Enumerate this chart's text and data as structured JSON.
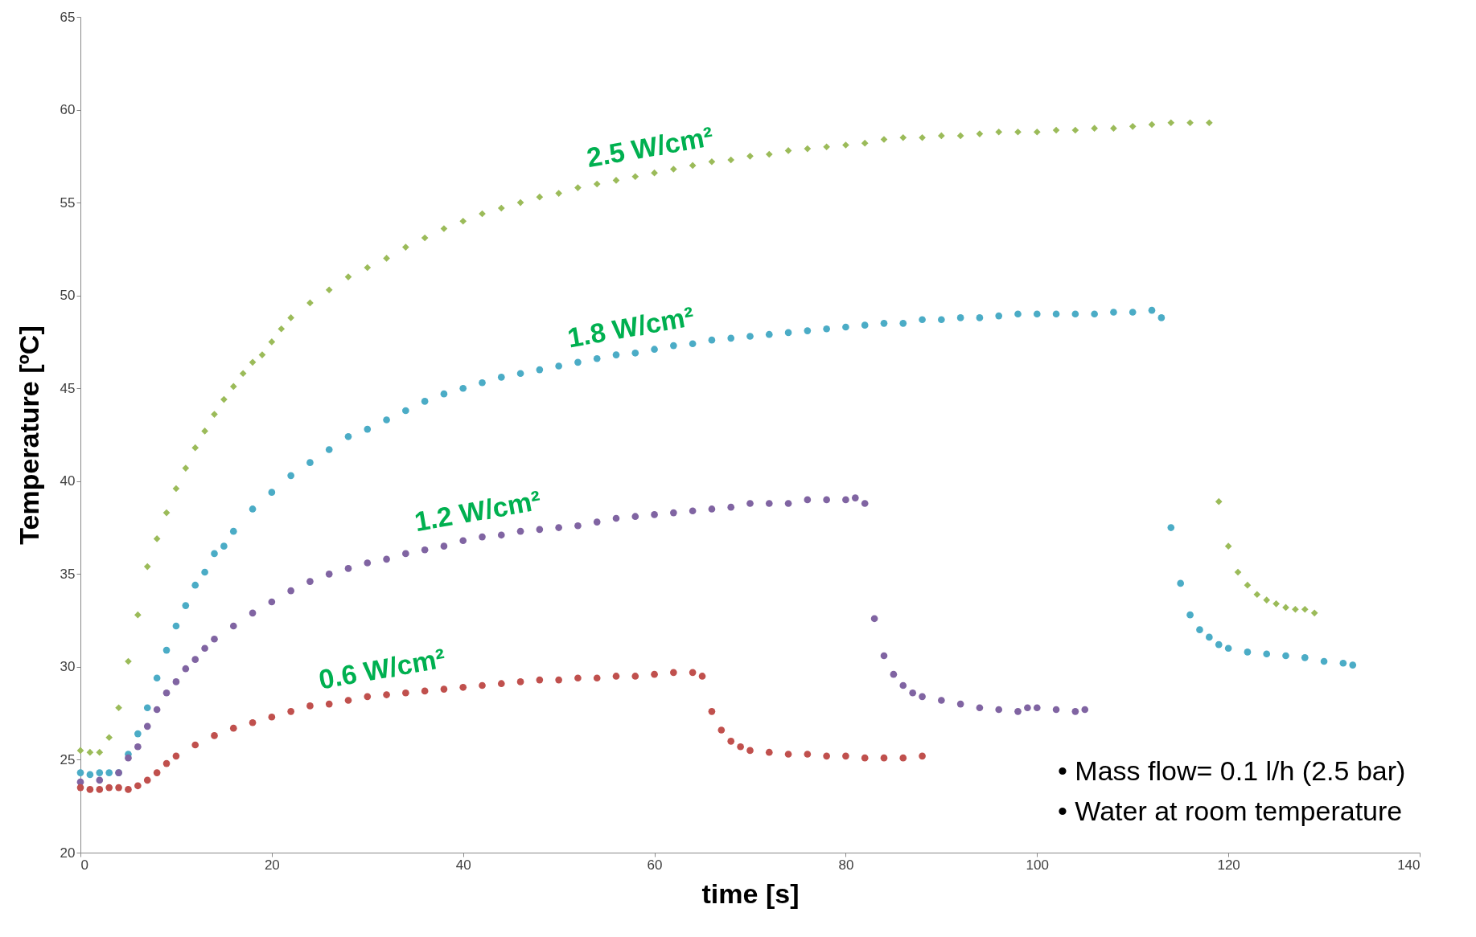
{
  "chart_data": {
    "type": "scatter",
    "xlabel": "time [s]",
    "ylabel": "Temperature [ºC]",
    "xlim": [
      0,
      140
    ],
    "xticks": [
      0,
      20,
      40,
      60,
      80,
      100,
      120,
      140
    ],
    "ylim": [
      20,
      65
    ],
    "yticks": [
      20,
      25,
      30,
      35,
      40,
      45,
      50,
      55,
      60,
      65
    ],
    "grid": false,
    "marker": "circle",
    "series": [
      {
        "name": "2.5 W/cm²",
        "color": "#9bbb59",
        "marker": "diamond",
        "x": [
          0,
          1,
          2,
          3,
          4,
          5,
          6,
          7,
          8,
          9,
          10,
          11,
          12,
          13,
          14,
          15,
          16,
          17,
          18,
          19,
          20,
          21,
          22,
          24,
          26,
          28,
          30,
          32,
          34,
          36,
          38,
          40,
          42,
          44,
          46,
          48,
          50,
          52,
          54,
          56,
          58,
          60,
          62,
          64,
          66,
          68,
          70,
          72,
          74,
          76,
          78,
          80,
          82,
          84,
          86,
          88,
          90,
          92,
          94,
          96,
          98,
          100,
          102,
          104,
          106,
          108,
          110,
          112,
          114,
          116,
          118,
          119,
          120,
          121,
          122,
          123,
          124,
          125,
          126,
          127,
          128,
          129
        ],
        "values": [
          25.5,
          25.4,
          25.4,
          26.2,
          27.8,
          30.3,
          32.8,
          35.4,
          36.9,
          38.3,
          39.6,
          40.7,
          41.8,
          42.7,
          43.6,
          44.4,
          45.1,
          45.8,
          46.4,
          46.8,
          47.5,
          48.2,
          48.8,
          49.6,
          50.3,
          51.0,
          51.5,
          52.0,
          52.6,
          53.1,
          53.6,
          54.0,
          54.4,
          54.7,
          55.0,
          55.3,
          55.5,
          55.8,
          56.0,
          56.2,
          56.4,
          56.6,
          56.8,
          57.0,
          57.2,
          57.3,
          57.5,
          57.6,
          57.8,
          57.9,
          58.0,
          58.1,
          58.2,
          58.4,
          58.5,
          58.5,
          58.6,
          58.6,
          58.7,
          58.8,
          58.8,
          58.8,
          58.9,
          58.9,
          59.0,
          59.0,
          59.1,
          59.2,
          59.3,
          59.3,
          59.3,
          38.9,
          36.5,
          35.1,
          34.4,
          33.9,
          33.6,
          33.4,
          33.2,
          33.1,
          33.1,
          32.9
        ]
      },
      {
        "name": "1.8 W/cm²",
        "color": "#4bacc6",
        "x": [
          0,
          1,
          2,
          3,
          4,
          5,
          6,
          7,
          8,
          9,
          10,
          11,
          12,
          13,
          14,
          15,
          16,
          18,
          20,
          22,
          24,
          26,
          28,
          30,
          32,
          34,
          36,
          38,
          40,
          42,
          44,
          46,
          48,
          50,
          52,
          54,
          56,
          58,
          60,
          62,
          64,
          66,
          68,
          70,
          72,
          74,
          76,
          78,
          80,
          82,
          84,
          86,
          88,
          90,
          92,
          94,
          96,
          98,
          100,
          102,
          104,
          106,
          108,
          110,
          112,
          113,
          114,
          115,
          116,
          117,
          118,
          119,
          120,
          122,
          124,
          126,
          128,
          130,
          132,
          133
        ],
        "values": [
          24.3,
          24.2,
          24.3,
          24.3,
          24.3,
          25.3,
          26.4,
          27.8,
          29.4,
          30.9,
          32.2,
          33.3,
          34.4,
          35.1,
          36.1,
          36.5,
          37.3,
          38.5,
          39.4,
          40.3,
          41.0,
          41.7,
          42.4,
          42.8,
          43.3,
          43.8,
          44.3,
          44.7,
          45.0,
          45.3,
          45.6,
          45.8,
          46.0,
          46.2,
          46.4,
          46.6,
          46.8,
          46.9,
          47.1,
          47.3,
          47.4,
          47.6,
          47.7,
          47.8,
          47.9,
          48.0,
          48.1,
          48.2,
          48.3,
          48.4,
          48.5,
          48.5,
          48.7,
          48.7,
          48.8,
          48.8,
          48.9,
          49.0,
          49.0,
          49.0,
          49.0,
          49.0,
          49.1,
          49.1,
          49.2,
          48.8,
          37.5,
          34.5,
          32.8,
          32.0,
          31.6,
          31.2,
          31.0,
          30.8,
          30.7,
          30.6,
          30.5,
          30.3,
          30.2,
          30.1
        ]
      },
      {
        "name": "1.2 W/cm²",
        "color": "#8064a2",
        "x": [
          0,
          2,
          4,
          5,
          6,
          7,
          8,
          9,
          10,
          11,
          12,
          13,
          14,
          16,
          18,
          20,
          22,
          24,
          26,
          28,
          30,
          32,
          34,
          36,
          38,
          40,
          42,
          44,
          46,
          48,
          50,
          52,
          54,
          56,
          58,
          60,
          62,
          64,
          66,
          68,
          70,
          72,
          74,
          76,
          78,
          80,
          81,
          82,
          83,
          84,
          85,
          86,
          87,
          88,
          90,
          92,
          94,
          96,
          98,
          99,
          100,
          102,
          104,
          105
        ],
        "values": [
          23.8,
          23.9,
          24.3,
          25.1,
          25.7,
          26.8,
          27.7,
          28.6,
          29.2,
          29.9,
          30.4,
          31.0,
          31.5,
          32.2,
          32.9,
          33.5,
          34.1,
          34.6,
          35.0,
          35.3,
          35.6,
          35.8,
          36.1,
          36.3,
          36.5,
          36.8,
          37.0,
          37.1,
          37.3,
          37.4,
          37.5,
          37.6,
          37.8,
          38.0,
          38.1,
          38.2,
          38.3,
          38.4,
          38.5,
          38.6,
          38.8,
          38.8,
          38.8,
          39.0,
          39.0,
          39.0,
          39.1,
          38.8,
          32.6,
          30.6,
          29.6,
          29.0,
          28.6,
          28.4,
          28.2,
          28.0,
          27.8,
          27.7,
          27.6,
          27.8,
          27.8,
          27.7,
          27.6,
          27.7
        ]
      },
      {
        "name": "0.6 W/cm²",
        "color": "#c0504d",
        "x": [
          0,
          1,
          2,
          3,
          4,
          5,
          6,
          7,
          8,
          9,
          10,
          12,
          14,
          16,
          18,
          20,
          22,
          24,
          26,
          28,
          30,
          32,
          34,
          36,
          38,
          40,
          42,
          44,
          46,
          48,
          50,
          52,
          54,
          56,
          58,
          60,
          62,
          64,
          65,
          66,
          67,
          68,
          69,
          70,
          72,
          74,
          76,
          78,
          80,
          82,
          84,
          86,
          88
        ],
        "values": [
          23.5,
          23.4,
          23.4,
          23.5,
          23.5,
          23.4,
          23.6,
          23.9,
          24.3,
          24.8,
          25.2,
          25.8,
          26.3,
          26.7,
          27.0,
          27.3,
          27.6,
          27.9,
          28.0,
          28.2,
          28.4,
          28.5,
          28.6,
          28.7,
          28.8,
          28.9,
          29.0,
          29.1,
          29.2,
          29.3,
          29.3,
          29.4,
          29.4,
          29.5,
          29.5,
          29.6,
          29.7,
          29.7,
          29.5,
          27.6,
          26.6,
          26.0,
          25.7,
          25.5,
          25.4,
          25.3,
          25.3,
          25.2,
          25.2,
          25.1,
          25.1,
          25.1,
          25.2
        ]
      }
    ],
    "annotations": [
      "•     Mass flow= 0.1 l/h (2.5 bar)",
      "•     Water at room temperature"
    ]
  }
}
